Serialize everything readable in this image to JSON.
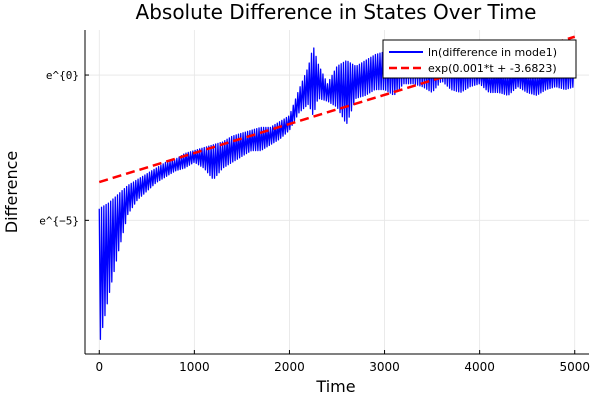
{
  "chart_data": {
    "type": "line",
    "title": "Absolute Difference in States Over Time",
    "xlabel": "Time",
    "ylabel": "Difference",
    "y_scale": "log (natural exponent labels)",
    "xlim": [
      -150,
      5150
    ],
    "ylim": [
      -9.6,
      1.55
    ],
    "grid": true,
    "legend_position": "top-right",
    "x_ticks": [
      {
        "value": 0,
        "label": "0"
      },
      {
        "value": 1000,
        "label": "1000"
      },
      {
        "value": 2000,
        "label": "2000"
      },
      {
        "value": 3000,
        "label": "3000"
      },
      {
        "value": 4000,
        "label": "4000"
      },
      {
        "value": 5000,
        "label": "5000"
      }
    ],
    "y_ticks": [
      {
        "value": 0,
        "label": "e^{0}"
      },
      {
        "value": -5,
        "label": "e^{−5}"
      }
    ],
    "series": [
      {
        "name": "ln(difference in mode1)",
        "style": "solid",
        "color": "#0000ff",
        "x": [
          0,
          100,
          200,
          300,
          400,
          500,
          600,
          700,
          800,
          900,
          1000,
          1100,
          1200,
          1300,
          1400,
          1500,
          1600,
          1700,
          1800,
          1900,
          2000,
          2100,
          2200,
          2250,
          2300,
          2400,
          2500,
          2600,
          2700,
          2800,
          2900,
          3000,
          3100,
          3200,
          3300,
          3400,
          3500,
          3600,
          3700,
          3800,
          3900,
          4000,
          4100,
          4200,
          4300,
          4400,
          4500,
          4600,
          4700,
          4800,
          4900,
          5000
        ],
        "upper": [
          -4.6,
          -4.4,
          -4.1,
          -3.8,
          -3.6,
          -3.4,
          -3.2,
          -3.0,
          -2.9,
          -2.7,
          -2.6,
          -2.5,
          -2.4,
          -2.3,
          -2.1,
          -2.0,
          -1.9,
          -1.8,
          -1.8,
          -1.6,
          -1.4,
          -0.5,
          0.3,
          1.0,
          0.4,
          -0.3,
          0.3,
          0.5,
          0.3,
          0.5,
          0.7,
          0.8,
          0.8,
          0.9,
          0.9,
          0.8,
          0.7,
          0.8,
          0.6,
          0.5,
          0.5,
          0.3,
          0.1,
          0.2,
          0.1,
          0.3,
          0.1,
          0.1,
          0.2,
          0.4,
          0.5,
          0.5
        ],
        "lower": [
          -9.3,
          -7.6,
          -6.1,
          -4.8,
          -4.3,
          -4.0,
          -3.7,
          -3.5,
          -3.3,
          -3.2,
          -3.0,
          -3.2,
          -3.6,
          -3.2,
          -3.0,
          -2.8,
          -2.6,
          -2.6,
          -2.4,
          -2.2,
          -1.9,
          -1.3,
          -1.0,
          -1.4,
          -0.8,
          -0.9,
          -1.1,
          -1.7,
          -0.8,
          -0.7,
          -0.5,
          -0.5,
          -0.7,
          -0.3,
          -0.3,
          -0.4,
          -0.6,
          -0.2,
          -0.5,
          -0.6,
          -0.4,
          -0.3,
          -0.6,
          -0.6,
          -0.7,
          -0.4,
          -0.6,
          -0.7,
          -0.5,
          -0.4,
          -0.5,
          -0.4
        ]
      },
      {
        "name": "exp(0.001*t + -3.6823)",
        "style": "dashed",
        "color": "#ff0000",
        "slope": 0.001,
        "intercept": -3.6823,
        "x": [
          0,
          5000
        ]
      }
    ]
  }
}
